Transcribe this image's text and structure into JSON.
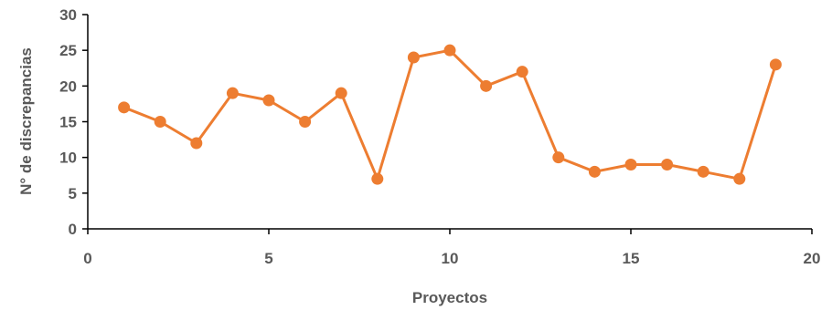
{
  "chart_data": {
    "type": "scatter",
    "title": "",
    "xlabel": "Proyectos",
    "ylabel": "N° de discrepancias",
    "xlim": [
      0,
      20
    ],
    "ylim": [
      0,
      30
    ],
    "xticks": [
      0,
      5,
      10,
      15,
      20
    ],
    "yticks": [
      0,
      5,
      10,
      15,
      20,
      25,
      30
    ],
    "grid": false,
    "legend": "none",
    "series": [
      {
        "color": "#ED7D31",
        "marker": "circle",
        "x": [
          1,
          2,
          3,
          4,
          5,
          6,
          7,
          8,
          9,
          10,
          11,
          12,
          13,
          14,
          15,
          16,
          17,
          18,
          19
        ],
        "y": [
          17,
          15,
          12,
          19,
          18,
          15,
          19,
          7,
          24,
          25,
          20,
          22,
          10,
          8,
          9,
          9,
          8,
          7,
          23
        ]
      }
    ]
  }
}
